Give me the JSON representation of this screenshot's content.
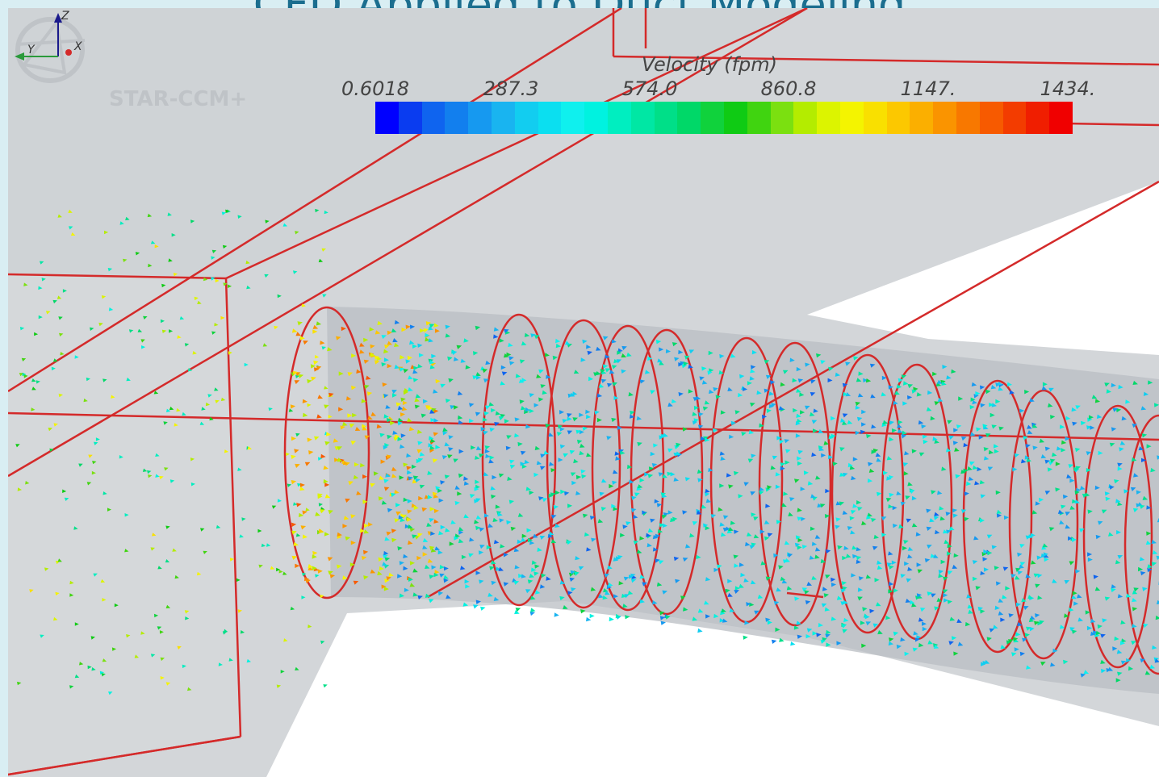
{
  "slide": {
    "title": "CFD Applied to Duct Modeling"
  },
  "software": {
    "logo_text": "STAR-CCM+"
  },
  "legend": {
    "title": "Velocity (fpm)",
    "ticks": [
      "0.6018",
      "287.3",
      "574.0",
      "860.8",
      "1147.",
      "1434."
    ],
    "colors": [
      "#0000ff",
      "#0a3cf0",
      "#0f64ef",
      "#127fee",
      "#1699f0",
      "#19b4f0",
      "#12cdf0",
      "#0bdff0",
      "#0ff0ee",
      "#00f2e0",
      "#00eec0",
      "#00e7a4",
      "#00df88",
      "#00d868",
      "#10d23c",
      "#0fcb14",
      "#40d410",
      "#7be010",
      "#b4ec00",
      "#dcf400",
      "#f4f400",
      "#f9e000",
      "#fcc800",
      "#fbaf00",
      "#fa9400",
      "#f87800",
      "#f75a00",
      "#f33c00",
      "#f01e00",
      "#f00000"
    ]
  },
  "axes_triad": {
    "z_label": "Z",
    "y_label": "Y",
    "x_label": "X"
  }
}
